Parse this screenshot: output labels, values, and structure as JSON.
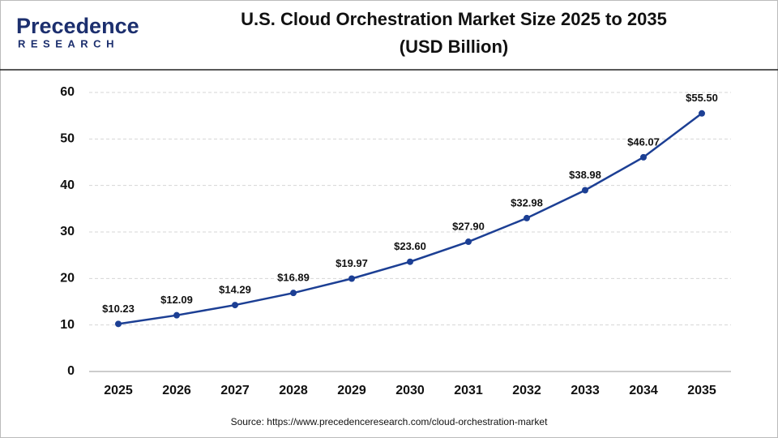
{
  "logo": {
    "name": "Precedence",
    "tagline": "RESEARCH"
  },
  "chart_data": {
    "type": "line",
    "title": "U.S. Cloud Orchestration Market Size 2025 to 2035",
    "subtitle": "(USD Billion)",
    "categories": [
      "2025",
      "2026",
      "2027",
      "2028",
      "2029",
      "2030",
      "2031",
      "2032",
      "2033",
      "2034",
      "2035"
    ],
    "values": [
      10.23,
      12.09,
      14.29,
      16.89,
      19.97,
      23.6,
      27.9,
      32.98,
      38.98,
      46.07,
      55.5
    ],
    "value_labels": [
      "$10.23",
      "$12.09",
      "$14.29",
      "$16.89",
      "$19.97",
      "$23.60",
      "$27.90",
      "$32.98",
      "$38.98",
      "$46.07",
      "$55.50"
    ],
    "color": "#1c3f94",
    "ylim": [
      0,
      60
    ],
    "yticks": [
      0,
      10,
      20,
      30,
      40,
      50,
      60
    ],
    "grid": true,
    "source": "Source: https://www.precedenceresearch.com/cloud-orchestration-market"
  }
}
